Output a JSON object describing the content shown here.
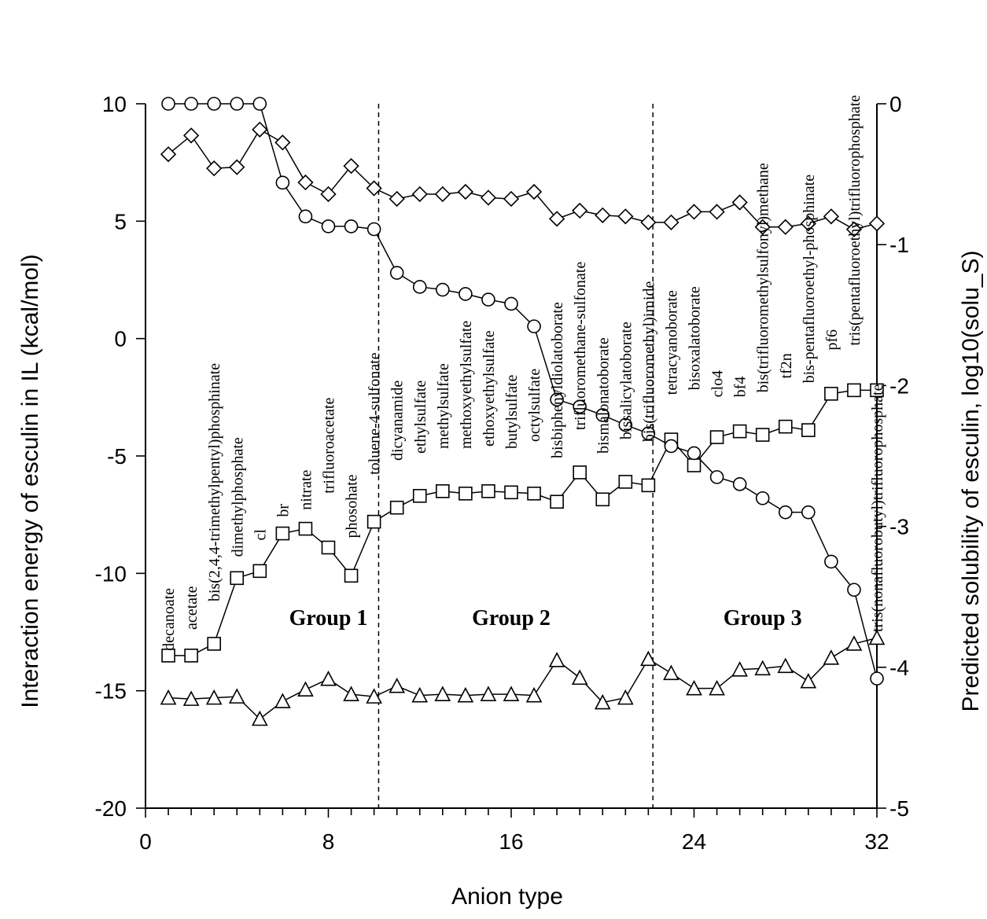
{
  "chart_data": {
    "type": "line",
    "xlabel": "Anion type",
    "ylabel": "Interaction energy of esculin in IL (kcal/mol)",
    "ylabel_right": "Predicted solubility of esculin, log10(solu_S)",
    "xlim": [
      0,
      32
    ],
    "ylim": [
      -20,
      10
    ],
    "ylim_right": [
      -5,
      0
    ],
    "x_ticks": [
      "0",
      "8",
      "16",
      "24",
      "32"
    ],
    "y_ticks": [
      "10",
      "5",
      "0",
      "-5",
      "-10",
      "-15",
      "-20"
    ],
    "y_ticks_right": [
      "0",
      "-1",
      "-2",
      "-3",
      "-4",
      "-5"
    ],
    "grid": false,
    "x": [
      1,
      2,
      3,
      4,
      5,
      6,
      7,
      8,
      9,
      10,
      11,
      12,
      13,
      14,
      15,
      16,
      17,
      18,
      19,
      20,
      21,
      22,
      23,
      24,
      25,
      26,
      27,
      28,
      29,
      30,
      31,
      32
    ],
    "series": [
      {
        "axis": "left",
        "marker": "square",
        "values": [
          -13.5,
          -13.5,
          -13.0,
          -10.2,
          -9.9,
          -8.3,
          -8.1,
          -8.9,
          -10.1,
          -7.8,
          -7.2,
          -6.7,
          -6.5,
          -6.6,
          -6.5,
          -6.55,
          -6.6,
          -6.95,
          -5.7,
          -6.85,
          -6.1,
          -6.25,
          -4.3,
          -5.4,
          -4.2,
          -3.95,
          -4.1,
          -3.75,
          -3.9,
          -2.35,
          -2.2,
          -2.2
        ]
      },
      {
        "axis": "left",
        "marker": "triangle",
        "values": [
          -15.3,
          -15.35,
          -15.3,
          -15.25,
          -16.2,
          -15.45,
          -14.95,
          -14.5,
          -15.15,
          -15.25,
          -14.8,
          -15.2,
          -15.15,
          -15.2,
          -15.15,
          -15.15,
          -15.2,
          -13.7,
          -14.45,
          -15.5,
          -15.3,
          -13.65,
          -14.25,
          -14.9,
          -14.9,
          -14.1,
          -14.05,
          -13.95,
          -14.6,
          -13.6,
          -13.0,
          -12.75
        ]
      },
      {
        "axis": "left",
        "marker": "diamond",
        "values": [
          7.85,
          8.65,
          7.25,
          7.3,
          8.9,
          8.35,
          6.65,
          6.15,
          7.35,
          6.4,
          5.95,
          6.15,
          6.15,
          6.25,
          6.0,
          5.95,
          6.25,
          5.1,
          5.45,
          5.25,
          5.2,
          4.95,
          4.95,
          5.4,
          5.4,
          5.8,
          4.75,
          4.75,
          4.9,
          5.2,
          4.65,
          4.9
        ]
      },
      {
        "axis": "right",
        "marker": "circle",
        "values": [
          0,
          0,
          0,
          0,
          0,
          -0.56,
          -0.8,
          -0.87,
          -0.87,
          -0.89,
          -1.2,
          -1.3,
          -1.32,
          -1.35,
          -1.39,
          -1.42,
          -1.58,
          -2.1,
          -2.15,
          -2.21,
          -2.28,
          -2.34,
          -2.43,
          -2.48,
          -2.65,
          -2.7,
          -2.8,
          -2.9,
          -2.9,
          -3.25,
          -3.45,
          -4.08
        ]
      }
    ],
    "anion_labels": [
      "decanoate",
      "acetate",
      "bis(2,4,4-trimethylpentyl)phosphinate",
      "dimethylphosphate",
      "cl",
      "br",
      "nitrate",
      "trifluoroacetate",
      "phosohate",
      "toluene-4-sulfonate",
      "dicyanamide",
      "ethylsulfate",
      "methylsulfate",
      "methoxyethylsulfate",
      "ethoxyethylsulfate",
      "butylsulfate",
      "octylsulfate",
      "bisbiphenyldiolatoborate",
      "trifluoromethane-sulfonate",
      "bismalonatoborate",
      "bissalicylatoborate",
      "bis(trifluoromethyl)imide",
      "tetracyanoborate",
      "bisoxalatoborate",
      "clo4",
      "bf4",
      "bis(trifluoromethylsulfonyl)methane",
      "tf2n",
      "bis-pentafluoroethyl-phosphinate",
      "pf6",
      "tris(pentafluoroethyl)trifluorophosphate",
      "tris(nonafluorobutyl)trifluorophosphate"
    ],
    "anion_label_baselines": [
      -13.3,
      -12.4,
      -11.2,
      -9.3,
      -8.6,
      -7.6,
      -7.3,
      -6.6,
      -8.5,
      -5.8,
      -5.2,
      -4.9,
      -4.7,
      -4.7,
      -4.6,
      -4.7,
      -4.4,
      -5.1,
      -3.9,
      -4.9,
      -4.3,
      -4.4,
      -2.4,
      -2.2,
      -2.5,
      -2.5,
      -2.3,
      -1.7,
      -1.9,
      -0.5,
      -0.3,
      -12.5
    ],
    "annotations": [
      "Group 1",
      "Group 2",
      "Group 3"
    ],
    "group_label_x": [
      8,
      16,
      27
    ],
    "group_label_y": -12.2,
    "group_dividers_x": [
      10.2,
      22.2
    ]
  }
}
